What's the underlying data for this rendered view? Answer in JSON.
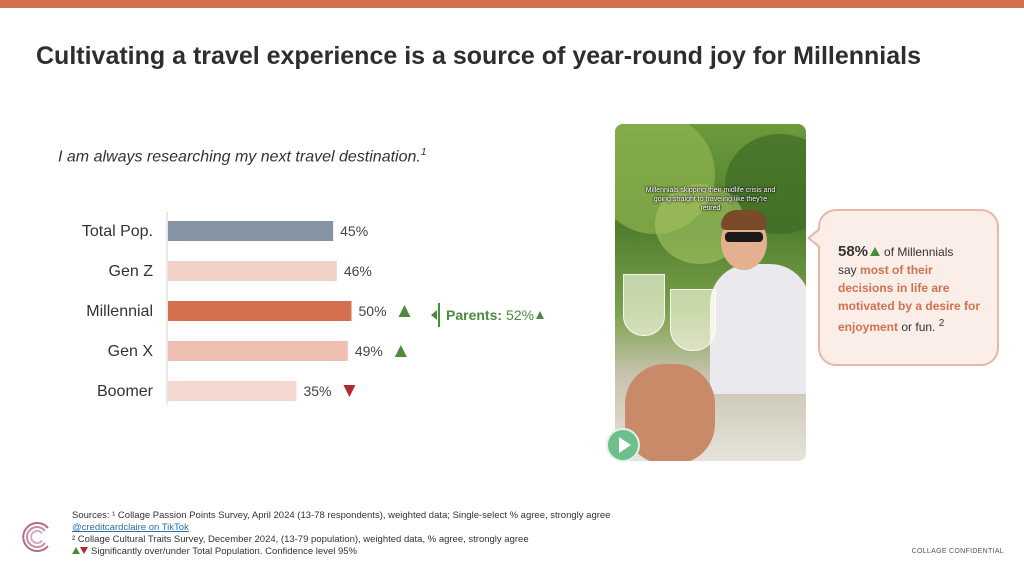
{
  "slide": {
    "title": "Cultivating a travel experience is a source of year-round joy for Millennials",
    "question": "I am always researching my next travel destination.",
    "question_sup": "1"
  },
  "chart_data": {
    "type": "bar",
    "orientation": "horizontal",
    "categories": [
      "Total Pop.",
      "Gen Z",
      "Millennial",
      "Gen X",
      "Boomer"
    ],
    "values": [
      45,
      46,
      50,
      49,
      35
    ],
    "value_labels": [
      "45%",
      "46%",
      "50%",
      "49%",
      "35%"
    ],
    "significance": [
      "none",
      "none",
      "up",
      "up",
      "down"
    ],
    "colors": [
      "#8593a5",
      "#f1d1c7",
      "#d4704f",
      "#efc0b2",
      "#f5d9d0"
    ],
    "xlim": [
      0,
      100
    ]
  },
  "callout": {
    "label": "Parents:",
    "value": "52%"
  },
  "video": {
    "caption": "Millennials skipping their midlife crisis and going straight to traveling like they're retired"
  },
  "bubble": {
    "big": "58%",
    "text1": "of Millennials",
    "text2": "say",
    "highlight": "most of their decisions in life are motivated by a desire for enjoyment",
    "text3": "or fun.",
    "sup": "2"
  },
  "footer": {
    "line1": "Sources: ¹ Collage Passion Points Survey, April 2024 (13-78 respondents), weighted data; Single-select % agree, strongly agree",
    "link": "@creditcardclaire on TikTok",
    "line3": "² Collage Cultural Traits Survey, December 2024, (13-79 population), weighted data, % agree, strongly agree",
    "line4": "Significantly over/under Total Population. Confidence level 95%"
  },
  "confidential": "COLLAGE CONFIDENTIAL",
  "colors": {
    "accent": "#d4704f",
    "up": "#4b8b3b",
    "down": "#b22a2a"
  }
}
